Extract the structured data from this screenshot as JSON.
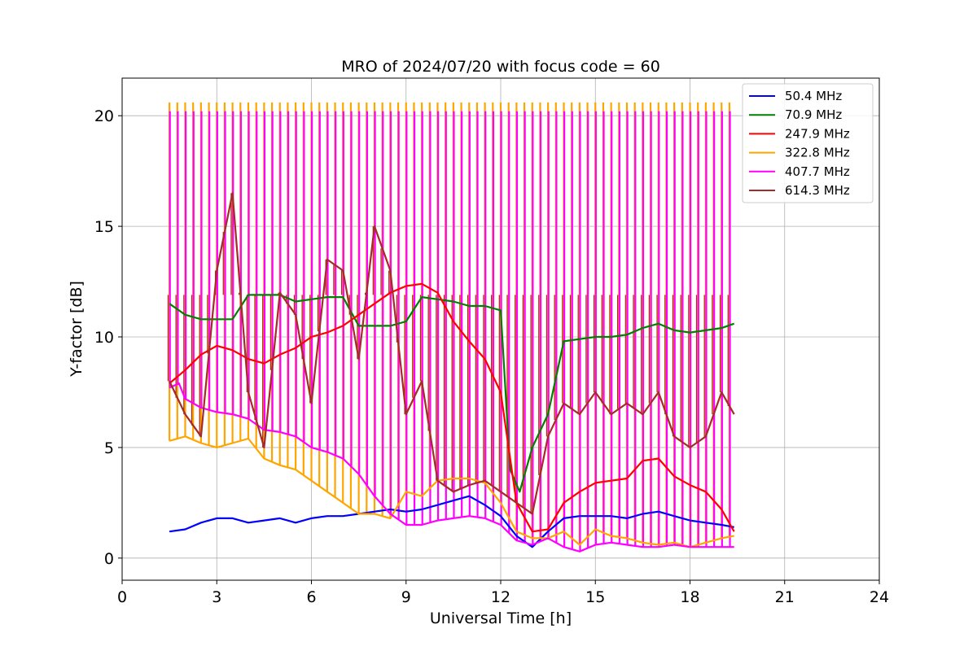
{
  "chart_data": {
    "type": "line",
    "title": "MRO of 2024/07/20 with focus code = 60",
    "xlabel": "Universal Time [h]",
    "ylabel": "Y-factor [dB]",
    "xlim": [
      0,
      24
    ],
    "ylim": [
      -1,
      21.7
    ],
    "xticks": [
      0,
      3,
      6,
      9,
      12,
      15,
      18,
      21,
      24
    ],
    "yticks": [
      0,
      5,
      10,
      15,
      20
    ],
    "grid": true,
    "legend_position": "top-right",
    "series": [
      {
        "name": " 50.4 MHz",
        "color": "#0000ff",
        "x": [
          1.5,
          2.0,
          2.5,
          3.0,
          3.5,
          4.0,
          4.5,
          5.0,
          5.5,
          6.0,
          6.5,
          7.0,
          7.5,
          8.0,
          8.5,
          9.0,
          9.5,
          10.0,
          10.5,
          11.0,
          11.5,
          12.0,
          12.5,
          13.0,
          13.5,
          14.0,
          14.5,
          15.0,
          15.5,
          16.0,
          16.5,
          17.0,
          17.5,
          18.0,
          18.5,
          19.0,
          19.4
        ],
        "y": [
          1.2,
          1.3,
          1.6,
          1.8,
          1.8,
          1.6,
          1.7,
          1.8,
          1.6,
          1.8,
          1.9,
          1.9,
          2.0,
          2.1,
          2.2,
          2.1,
          2.2,
          2.4,
          2.6,
          2.8,
          2.4,
          1.9,
          1.0,
          0.5,
          1.2,
          1.8,
          1.9,
          1.9,
          1.9,
          1.8,
          2.0,
          2.1,
          1.9,
          1.7,
          1.6,
          1.5,
          1.4
        ]
      },
      {
        "name": " 70.9 MHz",
        "color": "#008000",
        "x": [
          1.5,
          2.0,
          2.5,
          3.0,
          3.5,
          4.0,
          4.5,
          5.0,
          5.5,
          6.0,
          6.5,
          7.0,
          7.5,
          8.0,
          8.5,
          9.0,
          9.5,
          10.0,
          10.5,
          11.0,
          11.5,
          12.0,
          12.3,
          12.6,
          13.0,
          13.5,
          14.0,
          14.5,
          15.0,
          15.5,
          16.0,
          16.5,
          17.0,
          17.5,
          18.0,
          18.5,
          19.0,
          19.4
        ],
        "y": [
          11.5,
          11.0,
          10.8,
          10.8,
          10.8,
          11.9,
          11.9,
          11.9,
          11.6,
          11.7,
          11.8,
          11.8,
          10.5,
          10.5,
          10.5,
          10.7,
          11.8,
          11.7,
          11.6,
          11.4,
          11.4,
          11.2,
          4.0,
          3.0,
          5.0,
          6.5,
          9.8,
          9.9,
          10.0,
          10.0,
          10.1,
          10.4,
          10.6,
          10.3,
          10.2,
          10.3,
          10.4,
          10.6
        ]
      },
      {
        "name": " 247.9 MHz",
        "color": "#ff0000",
        "x": [
          1.5,
          2.0,
          2.5,
          3.0,
          3.5,
          4.0,
          4.5,
          5.0,
          5.5,
          6.0,
          6.5,
          7.0,
          7.5,
          8.0,
          8.5,
          9.0,
          9.5,
          10.0,
          10.5,
          11.0,
          11.5,
          12.0,
          12.5,
          13.0,
          13.5,
          14.0,
          14.5,
          15.0,
          15.5,
          16.0,
          16.5,
          17.0,
          17.5,
          18.0,
          18.5,
          19.0,
          19.4
        ],
        "y": [
          7.9,
          8.5,
          9.2,
          9.6,
          9.4,
          9.0,
          8.8,
          9.2,
          9.5,
          10.0,
          10.2,
          10.5,
          11.0,
          11.5,
          12.0,
          12.3,
          12.4,
          12.0,
          10.7,
          9.8,
          9.0,
          7.5,
          2.5,
          1.2,
          1.3,
          2.5,
          3.0,
          3.4,
          3.5,
          3.6,
          4.4,
          4.5,
          3.7,
          3.3,
          3.0,
          2.2,
          1.2
        ]
      },
      {
        "name": " 322.8 MHz",
        "color": "#ffa500",
        "x": [
          1.5,
          2.0,
          2.5,
          3.0,
          3.5,
          4.0,
          4.5,
          5.0,
          5.5,
          6.0,
          6.5,
          7.0,
          7.5,
          8.0,
          8.5,
          9.0,
          9.5,
          10.0,
          10.5,
          11.0,
          11.5,
          12.0,
          12.5,
          13.0,
          13.5,
          14.0,
          14.5,
          15.0,
          15.5,
          16.0,
          16.5,
          17.0,
          17.5,
          18.0,
          18.5,
          19.0,
          19.4
        ],
        "y": [
          5.3,
          5.5,
          5.2,
          5.0,
          5.2,
          5.4,
          4.5,
          4.2,
          4.0,
          3.5,
          3.0,
          2.5,
          2.0,
          2.0,
          1.8,
          3.0,
          2.8,
          3.5,
          3.6,
          3.6,
          3.4,
          2.5,
          1.2,
          0.9,
          0.9,
          1.2,
          0.6,
          1.3,
          1.0,
          0.9,
          0.7,
          0.6,
          0.7,
          0.5,
          0.7,
          0.9,
          1.0
        ]
      },
      {
        "name": " 407.7 MHz",
        "color": "#ff00ff",
        "x": [
          1.5,
          1.8,
          2.0,
          2.5,
          3.0,
          3.5,
          4.0,
          4.5,
          5.0,
          5.5,
          6.0,
          6.5,
          7.0,
          7.5,
          8.0,
          8.5,
          9.0,
          9.5,
          10.0,
          10.5,
          11.0,
          11.5,
          12.0,
          12.5,
          13.0,
          13.5,
          14.0,
          14.5,
          15.0,
          15.5,
          16.0,
          16.5,
          17.0,
          17.5,
          18.0,
          18.5,
          19.0,
          19.4
        ],
        "y": [
          7.7,
          7.9,
          7.2,
          6.8,
          6.6,
          6.5,
          6.3,
          5.8,
          5.7,
          5.5,
          5.0,
          4.8,
          4.5,
          3.8,
          2.8,
          2.0,
          1.5,
          1.5,
          1.7,
          1.8,
          1.9,
          1.8,
          1.5,
          0.8,
          0.6,
          0.9,
          0.5,
          0.3,
          0.6,
          0.7,
          0.6,
          0.5,
          0.5,
          0.6,
          0.5,
          0.5,
          0.5,
          0.5
        ]
      },
      {
        "name": " 614.3 MHz",
        "color": "#a52a2a",
        "x": [
          1.5,
          2.0,
          2.5,
          3.0,
          3.5,
          4.0,
          4.5,
          5.0,
          5.5,
          6.0,
          6.5,
          7.0,
          7.5,
          8.0,
          8.5,
          9.0,
          9.5,
          10.0,
          10.5,
          11.0,
          11.5,
          12.0,
          12.5,
          13.0,
          13.5,
          14.0,
          14.5,
          15.0,
          15.5,
          16.0,
          16.5,
          17.0,
          17.5,
          18.0,
          18.5,
          19.0,
          19.4
        ],
        "y": [
          8.0,
          6.5,
          5.5,
          13.0,
          16.5,
          7.5,
          5.0,
          12.0,
          11.0,
          7.0,
          13.5,
          13.0,
          9.0,
          15.0,
          13.0,
          6.5,
          8.0,
          3.5,
          3.0,
          3.3,
          3.5,
          3.0,
          2.5,
          2.0,
          5.5,
          7.0,
          6.5,
          7.5,
          6.5,
          7.0,
          6.5,
          7.5,
          5.5,
          5.0,
          5.5,
          7.5,
          6.5
        ]
      }
    ],
    "calibration_spikes": {
      "x": [
        1.5,
        1.75,
        2.0,
        2.25,
        2.5,
        2.75,
        3.0,
        3.25,
        3.5,
        3.75,
        4.0,
        4.25,
        4.5,
        4.75,
        5.0,
        5.25,
        5.5,
        5.75,
        6.0,
        6.25,
        6.5,
        6.75,
        7.0,
        7.25,
        7.5,
        7.75,
        8.0,
        8.25,
        8.5,
        8.75,
        9.0,
        9.25,
        9.5,
        9.75,
        10.0,
        10.25,
        10.5,
        10.75,
        11.0,
        11.25,
        11.5,
        11.75,
        12.0,
        12.25,
        12.5,
        12.75,
        13.0,
        13.25,
        13.5,
        13.75,
        14.0,
        14.25,
        14.5,
        14.75,
        15.0,
        15.25,
        15.5,
        15.75,
        16.0,
        16.25,
        16.5,
        16.75,
        17.0,
        17.25,
        17.5,
        17.75,
        18.0,
        18.25,
        18.5,
        18.75,
        19.0,
        19.25
      ],
      "orange_top": 20.6,
      "magenta_top": 20.2,
      "brown_top": 11.9
    }
  }
}
